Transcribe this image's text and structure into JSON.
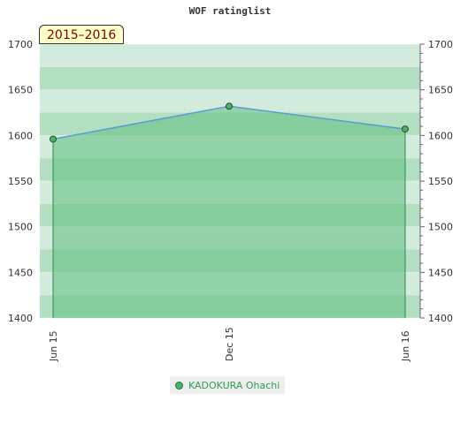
{
  "chart_data": {
    "type": "line",
    "title": "WOF ratinglist",
    "badge": "2015–2016",
    "x": [
      "Jun 15",
      "Dec 15",
      "Jun 16"
    ],
    "series": [
      {
        "name": "KADOKURA Ohachi",
        "values": [
          1596,
          1632,
          1607
        ],
        "color": "#4caf6a"
      }
    ],
    "ylim": [
      1400,
      1700
    ],
    "yticks": [
      1400,
      1450,
      1500,
      1550,
      1600,
      1650,
      1700
    ],
    "grid": true,
    "legend": "bottom-center",
    "colors": {
      "line": "#5a9bd5",
      "fill": "#5fbf7f",
      "band_dark": "#b4dec2",
      "band_light": "#d2ebdc"
    }
  }
}
